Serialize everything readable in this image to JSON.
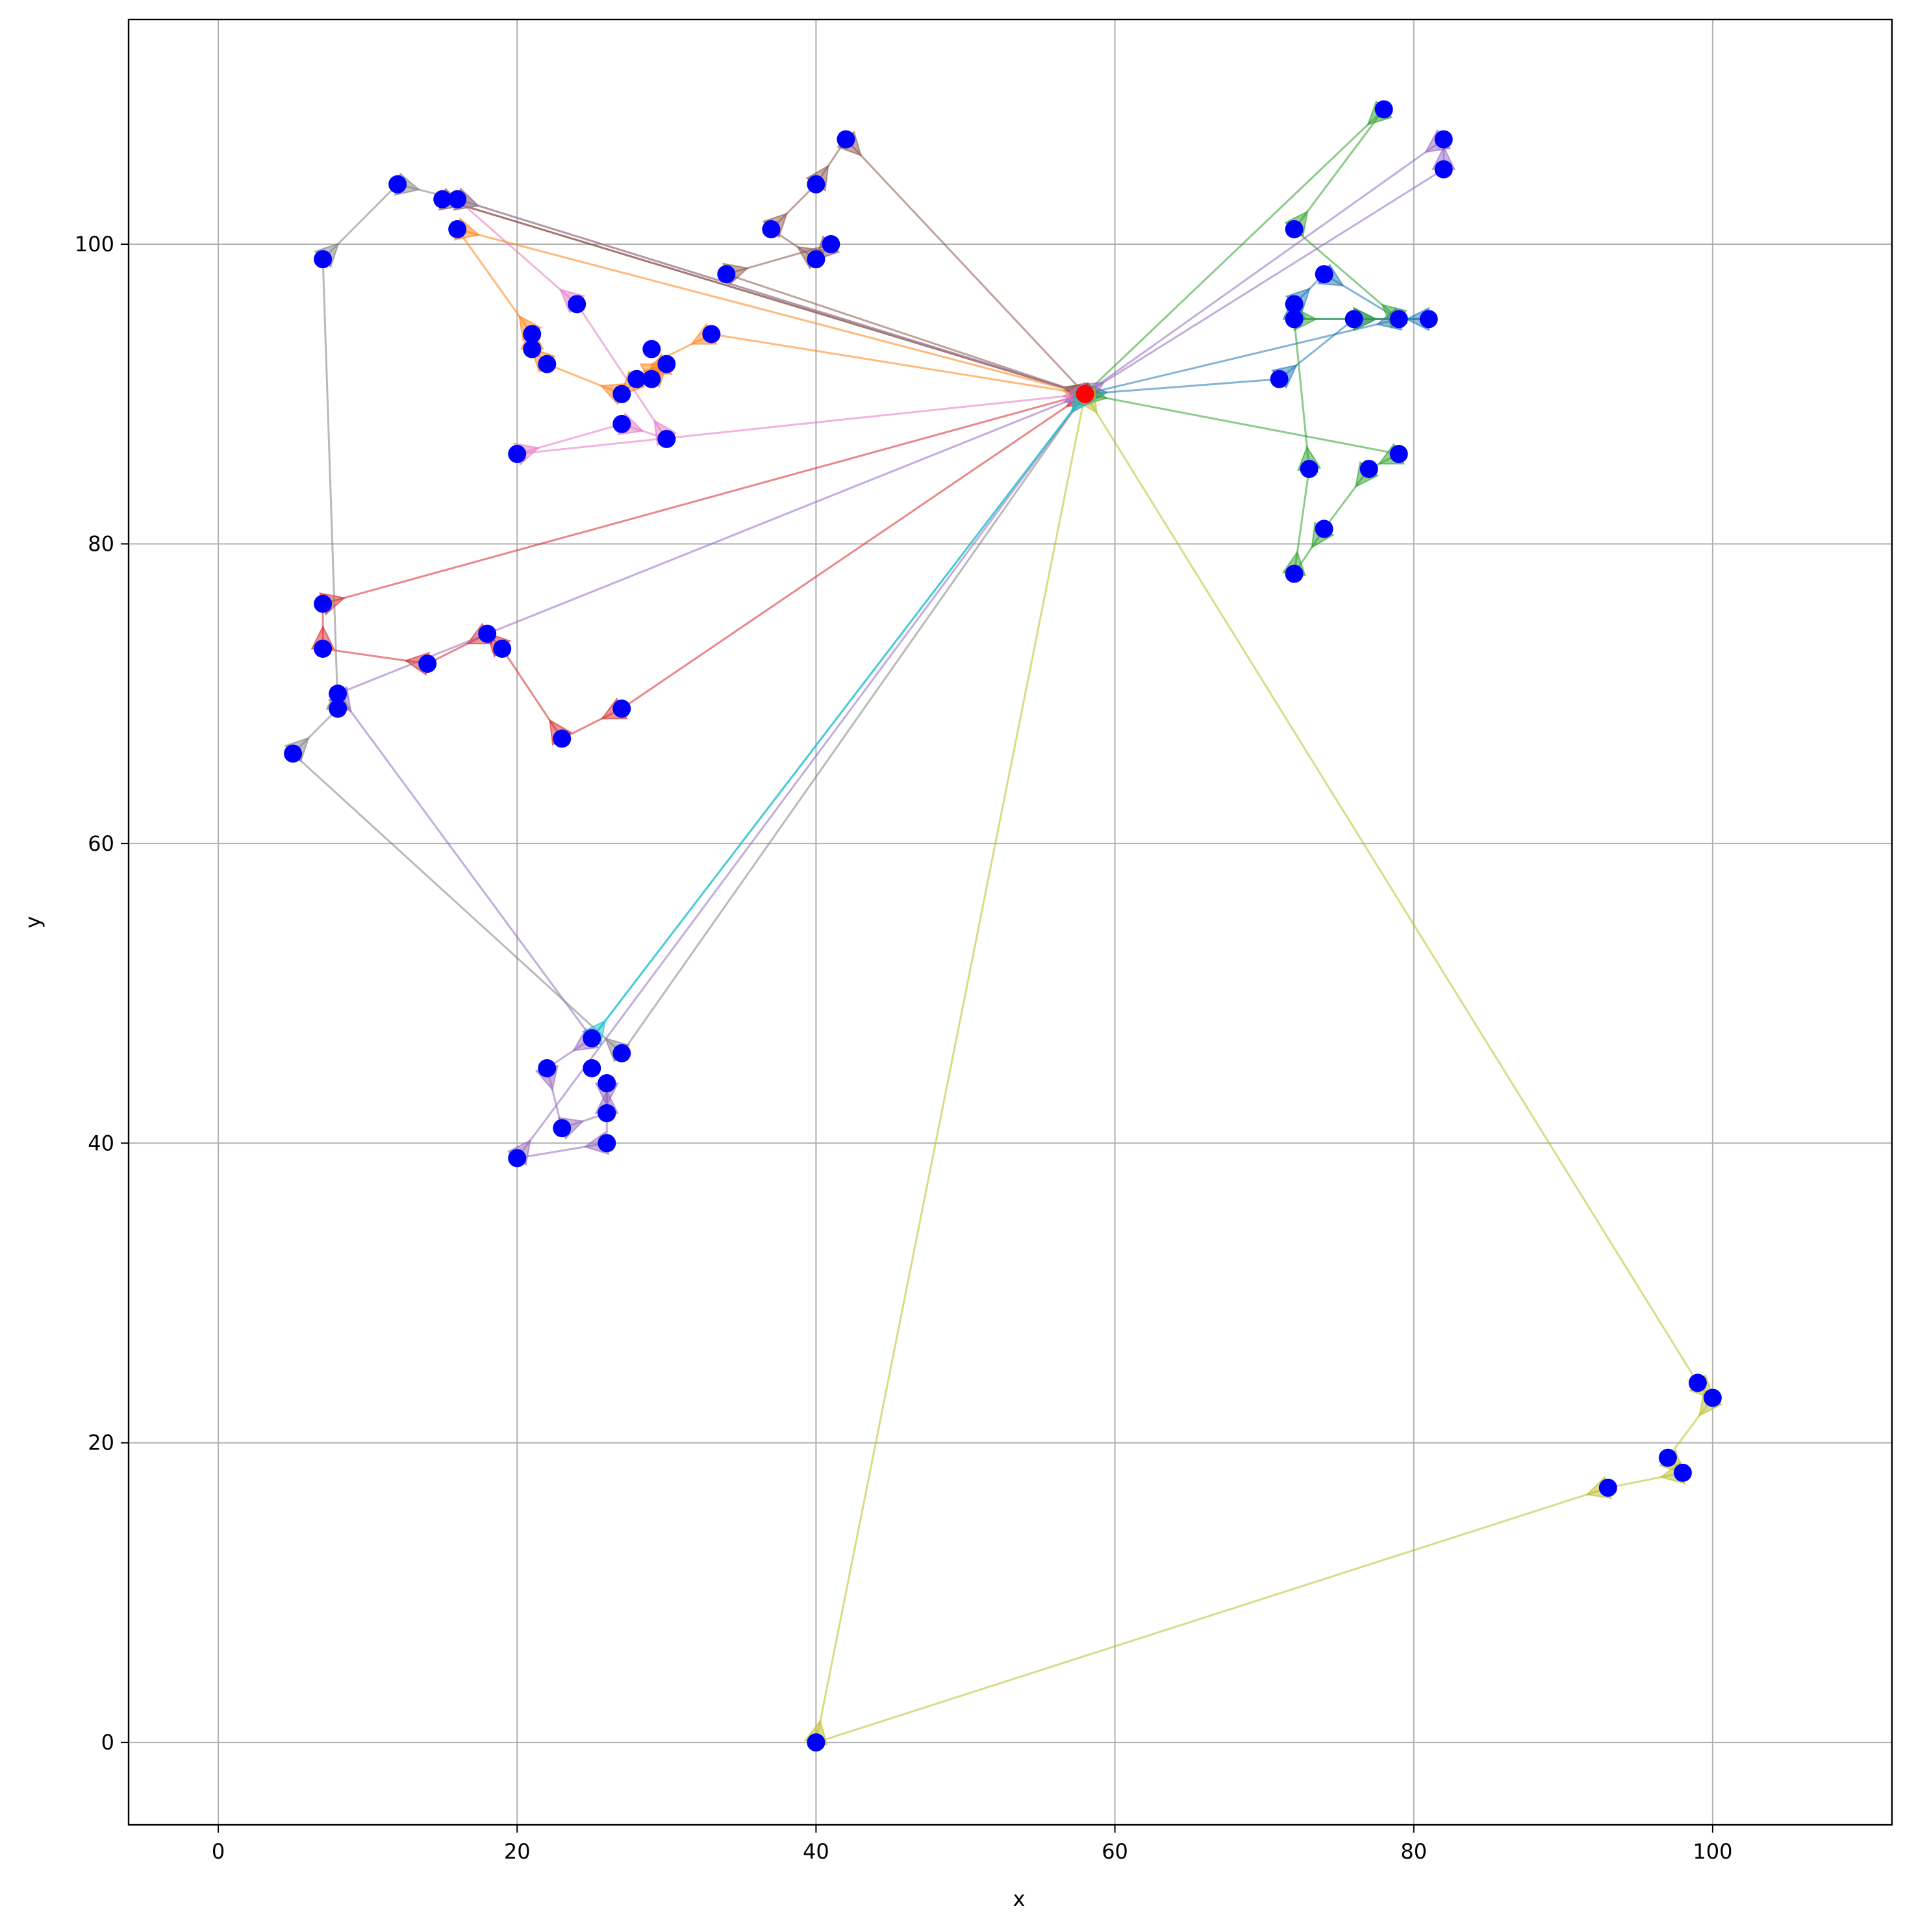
{
  "chart_data": {
    "type": "line",
    "title": "",
    "xlabel": "x",
    "ylabel": "y",
    "xlim": [
      -6,
      112
    ],
    "ylim": [
      -5.5,
      115
    ],
    "xticks": [
      0,
      20,
      40,
      60,
      80,
      100
    ],
    "yticks": [
      0,
      20,
      40,
      60,
      80,
      100
    ],
    "grid": true,
    "depot": {
      "x": 58,
      "y": 90,
      "color": "#ff0000"
    },
    "point_color": "#0000ff",
    "routes": [
      {
        "color": "#1f77b4",
        "points": [
          [
            58,
            90
          ],
          [
            71,
            91
          ],
          [
            76,
            95
          ],
          [
            81,
            95
          ],
          [
            72,
            95
          ],
          [
            72,
            96
          ],
          [
            74,
            98
          ],
          [
            79,
            95
          ],
          [
            58,
            90
          ]
        ]
      },
      {
        "color": "#ff7f0e",
        "points": [
          [
            58,
            90
          ],
          [
            33,
            94
          ],
          [
            29,
            92
          ],
          [
            29,
            91
          ],
          [
            30,
            92
          ],
          [
            28,
            91
          ],
          [
            27,
            90
          ],
          [
            22,
            92
          ],
          [
            21,
            93
          ],
          [
            21,
            94
          ],
          [
            16,
            101
          ],
          [
            58,
            90
          ]
        ]
      },
      {
        "color": "#2ca02c",
        "points": [
          [
            58,
            90
          ],
          [
            79,
            86
          ],
          [
            77,
            85
          ],
          [
            74,
            81
          ],
          [
            72,
            78
          ],
          [
            73,
            85
          ],
          [
            72,
            95
          ],
          [
            76,
            95
          ],
          [
            79,
            95
          ],
          [
            72,
            101
          ],
          [
            78,
            109
          ],
          [
            58,
            90
          ]
        ]
      },
      {
        "color": "#d62728",
        "points": [
          [
            58,
            90
          ],
          [
            27,
            69
          ],
          [
            23,
            67
          ],
          [
            19,
            73
          ],
          [
            18,
            74
          ],
          [
            14,
            72
          ],
          [
            7,
            73
          ],
          [
            7,
            76
          ],
          [
            58,
            90
          ]
        ]
      },
      {
        "color": "#9467bd",
        "points": [
          [
            58,
            90
          ],
          [
            8,
            70
          ],
          [
            25,
            47
          ],
          [
            22,
            45
          ],
          [
            23,
            41
          ],
          [
            26,
            42
          ],
          [
            26,
            44
          ],
          [
            26,
            40
          ],
          [
            20,
            39
          ],
          [
            58,
            90
          ],
          [
            82,
            105
          ],
          [
            82,
            107
          ],
          [
            58,
            90
          ]
        ]
      },
      {
        "color": "#8c564b",
        "points": [
          [
            58,
            90
          ],
          [
            34,
            98
          ],
          [
            41,
            100
          ],
          [
            40,
            99
          ],
          [
            37,
            101
          ],
          [
            40,
            104
          ],
          [
            42,
            107
          ],
          [
            58,
            90
          ],
          [
            15,
            103
          ],
          [
            58,
            90
          ]
        ]
      },
      {
        "color": "#e377c2",
        "points": [
          [
            58,
            90
          ],
          [
            20,
            86
          ],
          [
            27,
            88
          ],
          [
            30,
            87
          ],
          [
            24,
            96
          ],
          [
            16,
            103
          ],
          [
            58,
            90
          ]
        ]
      },
      {
        "color": "#7f7f7f",
        "points": [
          [
            58,
            90
          ],
          [
            27,
            46
          ],
          [
            5,
            66
          ],
          [
            8,
            69
          ],
          [
            7,
            99
          ],
          [
            12,
            104
          ],
          [
            16,
            103
          ],
          [
            58,
            90
          ]
        ]
      },
      {
        "color": "#bcbd22",
        "points": [
          [
            58,
            90
          ],
          [
            99,
            24
          ],
          [
            100,
            23
          ],
          [
            97,
            19
          ],
          [
            98,
            18
          ],
          [
            93,
            17
          ],
          [
            40,
            0
          ],
          [
            58,
            90
          ]
        ]
      },
      {
        "color": "#17becf",
        "points": [
          [
            58,
            90
          ],
          [
            25,
            47
          ],
          [
            58,
            90
          ]
        ]
      }
    ],
    "customers": [
      [
        78,
        109
      ],
      [
        82,
        107
      ],
      [
        82,
        105
      ],
      [
        42,
        107
      ],
      [
        12,
        104
      ],
      [
        15,
        103
      ],
      [
        16,
        103
      ],
      [
        40,
        104
      ],
      [
        16,
        101
      ],
      [
        37,
        101
      ],
      [
        72,
        101
      ],
      [
        7,
        99
      ],
      [
        40,
        99
      ],
      [
        41,
        100
      ],
      [
        34,
        98
      ],
      [
        74,
        98
      ],
      [
        24,
        96
      ],
      [
        72,
        96
      ],
      [
        72,
        95
      ],
      [
        76,
        95
      ],
      [
        79,
        95
      ],
      [
        81,
        95
      ],
      [
        21,
        94
      ],
      [
        33,
        94
      ],
      [
        21,
        93
      ],
      [
        29,
        93
      ],
      [
        22,
        92
      ],
      [
        30,
        92
      ],
      [
        28,
        91
      ],
      [
        29,
        91
      ],
      [
        71,
        91
      ],
      [
        27,
        90
      ],
      [
        27,
        88
      ],
      [
        30,
        87
      ],
      [
        20,
        86
      ],
      [
        79,
        86
      ],
      [
        73,
        85
      ],
      [
        77,
        85
      ],
      [
        74,
        81
      ],
      [
        72,
        78
      ],
      [
        7,
        76
      ],
      [
        18,
        74
      ],
      [
        7,
        73
      ],
      [
        19,
        73
      ],
      [
        14,
        72
      ],
      [
        8,
        70
      ],
      [
        27,
        69
      ],
      [
        8,
        69
      ],
      [
        23,
        67
      ],
      [
        5,
        66
      ],
      [
        25,
        47
      ],
      [
        27,
        46
      ],
      [
        22,
        45
      ],
      [
        25,
        45
      ],
      [
        26,
        44
      ],
      [
        26,
        42
      ],
      [
        23,
        41
      ],
      [
        26,
        40
      ],
      [
        20,
        39
      ],
      [
        99,
        24
      ],
      [
        100,
        23
      ],
      [
        97,
        19
      ],
      [
        98,
        18
      ],
      [
        93,
        17
      ],
      [
        40,
        0
      ]
    ]
  }
}
